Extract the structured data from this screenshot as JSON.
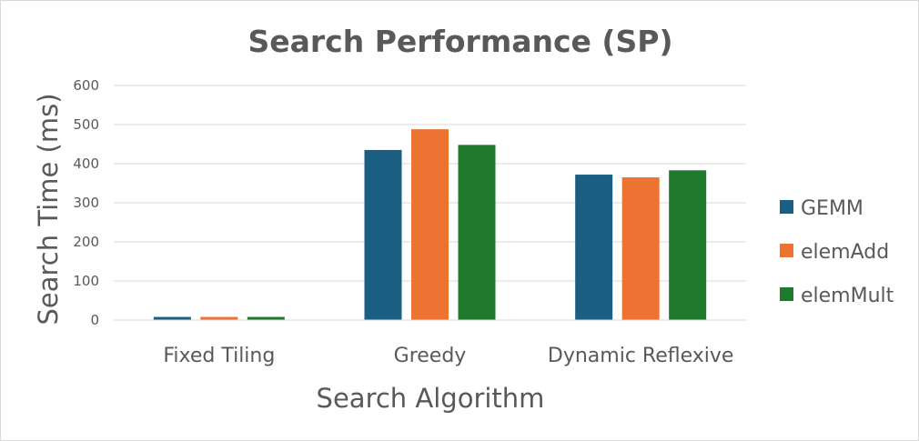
{
  "chart_data": {
    "type": "bar",
    "title": "Search Performance (SP)",
    "xlabel": "Search Algorithm",
    "ylabel": "Search Time (ms)",
    "ylim": [
      0,
      600
    ],
    "yticks": [
      0,
      100,
      200,
      300,
      400,
      500,
      600
    ],
    "grid": true,
    "legend_position": "right",
    "categories": [
      "Fixed Tiling",
      "Greedy",
      "Dynamic Reflexive"
    ],
    "series": [
      {
        "name": "GEMM",
        "color": "#1a5e82",
        "values": [
          8,
          435,
          372
        ]
      },
      {
        "name": "elemAdd",
        "color": "#ec7331",
        "values": [
          8,
          488,
          365
        ]
      },
      {
        "name": "elemMult",
        "color": "#1f7a2e",
        "values": [
          8,
          448,
          383
        ]
      }
    ]
  }
}
